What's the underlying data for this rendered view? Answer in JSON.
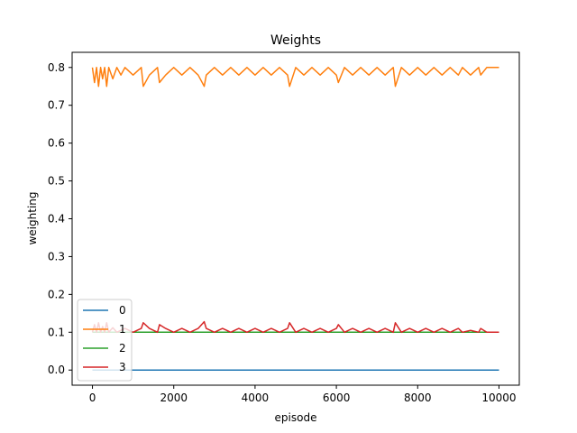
{
  "chart_data": {
    "type": "line",
    "title": "Weights",
    "xlabel": "episode",
    "ylabel": "weighting",
    "xlim": [
      -500,
      10500
    ],
    "ylim": [
      -0.04,
      0.84
    ],
    "xticks": [
      0,
      2000,
      4000,
      6000,
      8000,
      10000
    ],
    "xtick_labels": [
      "0",
      "2000",
      "4000",
      "6000",
      "8000",
      "10000"
    ],
    "yticks": [
      0.0,
      0.1,
      0.2,
      0.3,
      0.4,
      0.5,
      0.6,
      0.7,
      0.8
    ],
    "ytick_labels": [
      "0.0",
      "0.1",
      "0.2",
      "0.3",
      "0.4",
      "0.5",
      "0.6",
      "0.7",
      "0.8"
    ],
    "grid": false,
    "legend_position": "lower-left",
    "series": [
      {
        "name": "0",
        "color": "#1f77b4",
        "x": [
          0,
          10000
        ],
        "y": [
          0.0,
          0.0
        ]
      },
      {
        "name": "1",
        "color": "#ff7f0e",
        "x": [
          0,
          50,
          100,
          150,
          200,
          250,
          300,
          350,
          400,
          500,
          600,
          700,
          800,
          1000,
          1200,
          1250,
          1400,
          1600,
          1650,
          1800,
          2000,
          2200,
          2400,
          2600,
          2750,
          2800,
          3000,
          3200,
          3400,
          3600,
          3800,
          4000,
          4200,
          4400,
          4600,
          4800,
          4850,
          5000,
          5200,
          5400,
          5600,
          5800,
          6000,
          6050,
          6200,
          6400,
          6600,
          6800,
          7000,
          7200,
          7400,
          7450,
          7600,
          7800,
          8000,
          8200,
          8400,
          8600,
          8800,
          9000,
          9100,
          9300,
          9500,
          9550,
          9700,
          10000
        ],
        "y": [
          0.8,
          0.76,
          0.8,
          0.75,
          0.8,
          0.77,
          0.8,
          0.75,
          0.8,
          0.77,
          0.8,
          0.78,
          0.8,
          0.78,
          0.8,
          0.75,
          0.78,
          0.8,
          0.76,
          0.78,
          0.8,
          0.78,
          0.8,
          0.78,
          0.75,
          0.78,
          0.8,
          0.78,
          0.8,
          0.78,
          0.8,
          0.78,
          0.8,
          0.78,
          0.8,
          0.78,
          0.75,
          0.8,
          0.78,
          0.8,
          0.78,
          0.8,
          0.78,
          0.76,
          0.8,
          0.78,
          0.8,
          0.78,
          0.8,
          0.78,
          0.8,
          0.75,
          0.8,
          0.78,
          0.8,
          0.78,
          0.8,
          0.78,
          0.8,
          0.78,
          0.8,
          0.78,
          0.8,
          0.78,
          0.8,
          0.8
        ]
      },
      {
        "name": "2",
        "color": "#2ca02c",
        "x": [
          0,
          10000
        ],
        "y": [
          0.1,
          0.1
        ]
      },
      {
        "name": "3",
        "color": "#d62728",
        "x": [
          0,
          50,
          100,
          150,
          200,
          250,
          300,
          350,
          400,
          500,
          600,
          800,
          1000,
          1200,
          1250,
          1400,
          1600,
          1650,
          1800,
          2000,
          2200,
          2400,
          2600,
          2750,
          2800,
          3000,
          3200,
          3400,
          3600,
          3800,
          4000,
          4200,
          4400,
          4600,
          4800,
          4850,
          5000,
          5200,
          5400,
          5600,
          5800,
          6000,
          6050,
          6200,
          6400,
          6600,
          6800,
          7000,
          7200,
          7400,
          7450,
          7600,
          7800,
          8000,
          8200,
          8400,
          8600,
          8800,
          9000,
          9100,
          9300,
          9500,
          9550,
          9700,
          10000
        ],
        "y": [
          0.1,
          0.12,
          0.1,
          0.125,
          0.1,
          0.115,
          0.1,
          0.125,
          0.1,
          0.112,
          0.1,
          0.11,
          0.1,
          0.11,
          0.125,
          0.11,
          0.1,
          0.12,
          0.11,
          0.1,
          0.11,
          0.1,
          0.11,
          0.128,
          0.11,
          0.1,
          0.11,
          0.1,
          0.11,
          0.1,
          0.11,
          0.1,
          0.11,
          0.1,
          0.11,
          0.125,
          0.1,
          0.11,
          0.1,
          0.11,
          0.1,
          0.11,
          0.12,
          0.1,
          0.11,
          0.1,
          0.11,
          0.1,
          0.11,
          0.1,
          0.125,
          0.1,
          0.11,
          0.1,
          0.11,
          0.1,
          0.11,
          0.1,
          0.11,
          0.1,
          0.105,
          0.1,
          0.11,
          0.1,
          0.1
        ]
      }
    ]
  }
}
